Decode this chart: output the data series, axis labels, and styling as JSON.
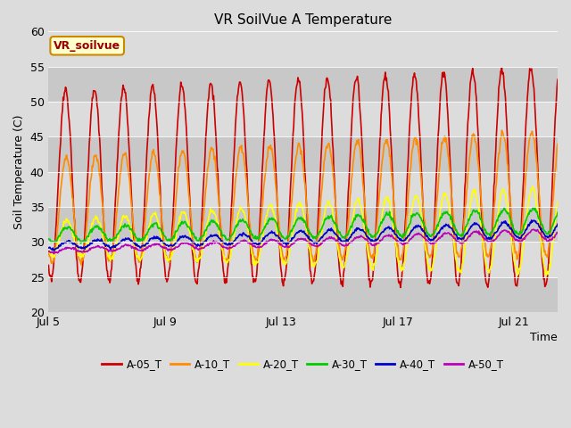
{
  "title": "VR SoilVue A Temperature",
  "xlabel": "Time",
  "ylabel": "Soil Temperature (C)",
  "ylim": [
    20,
    60
  ],
  "xlim_days": [
    0,
    17.5
  ],
  "x_ticks_days": [
    0,
    4,
    8,
    12,
    16
  ],
  "x_tick_labels": [
    "Jul 5",
    "Jul 9",
    "Jul 13",
    "Jul 17",
    "Jul 21"
  ],
  "yticks": [
    20,
    25,
    30,
    35,
    40,
    45,
    50,
    55,
    60
  ],
  "bg_color": "#dcdcdc",
  "band_light": "#dcdcdc",
  "band_dark": "#c8c8c8",
  "series": {
    "A-05_T": {
      "color": "#cc0000",
      "linewidth": 1.2
    },
    "A-10_T": {
      "color": "#ff8c00",
      "linewidth": 1.2
    },
    "A-20_T": {
      "color": "#ffff00",
      "linewidth": 1.2
    },
    "A-30_T": {
      "color": "#00cc00",
      "linewidth": 1.2
    },
    "A-40_T": {
      "color": "#0000cc",
      "linewidth": 1.2
    },
    "A-50_T": {
      "color": "#bb00bb",
      "linewidth": 1.2
    }
  },
  "legend_label": "VR_soilvue",
  "legend_bg": "#ffffcc",
  "legend_border": "#cc8800",
  "title_fontsize": 11,
  "axis_fontsize": 9,
  "tick_fontsize": 9
}
